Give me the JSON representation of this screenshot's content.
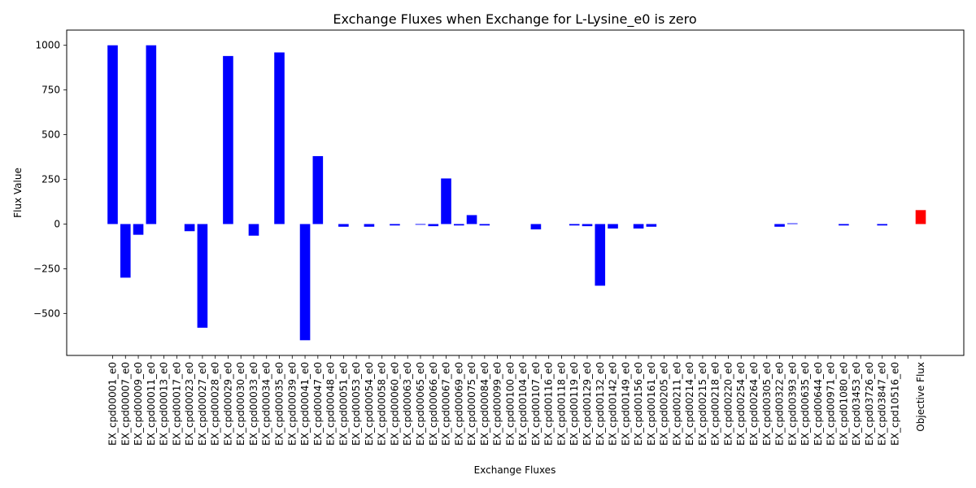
{
  "chart_data": {
    "type": "bar",
    "title": "Exchange Fluxes when Exchange for L-Lysine_e0 is zero",
    "xlabel": "Exchange Fluxes",
    "ylabel": "Flux Value",
    "ylim": [
      -735,
      1085
    ],
    "yticks": [
      -500,
      -250,
      0,
      250,
      500,
      750,
      1000
    ],
    "grid": false,
    "legend": "none",
    "categories": [
      "EX_cpd00001_e0",
      "EX_cpd00007_e0",
      "EX_cpd00009_e0",
      "EX_cpd00011_e0",
      "EX_cpd00013_e0",
      "EX_cpd00017_e0",
      "EX_cpd00023_e0",
      "EX_cpd00027_e0",
      "EX_cpd00028_e0",
      "EX_cpd00029_e0",
      "EX_cpd00030_e0",
      "EX_cpd00033_e0",
      "EX_cpd00034_e0",
      "EX_cpd00035_e0",
      "EX_cpd00039_e0",
      "EX_cpd00041_e0",
      "EX_cpd00047_e0",
      "EX_cpd00048_e0",
      "EX_cpd00051_e0",
      "EX_cpd00053_e0",
      "EX_cpd00054_e0",
      "EX_cpd00058_e0",
      "EX_cpd00060_e0",
      "EX_cpd00063_e0",
      "EX_cpd00065_e0",
      "EX_cpd00066_e0",
      "EX_cpd00067_e0",
      "EX_cpd00069_e0",
      "EX_cpd00075_e0",
      "EX_cpd00084_e0",
      "EX_cpd00099_e0",
      "EX_cpd00100_e0",
      "EX_cpd00104_e0",
      "EX_cpd00107_e0",
      "EX_cpd00116_e0",
      "EX_cpd00118_e0",
      "EX_cpd00119_e0",
      "EX_cpd00129_e0",
      "EX_cpd00132_e0",
      "EX_cpd00142_e0",
      "EX_cpd00149_e0",
      "EX_cpd00156_e0",
      "EX_cpd00161_e0",
      "EX_cpd00205_e0",
      "EX_cpd00211_e0",
      "EX_cpd00214_e0",
      "EX_cpd00215_e0",
      "EX_cpd00218_e0",
      "EX_cpd00220_e0",
      "EX_cpd00254_e0",
      "EX_cpd00264_e0",
      "EX_cpd00305_e0",
      "EX_cpd00322_e0",
      "EX_cpd00393_e0",
      "EX_cpd00635_e0",
      "EX_cpd00644_e0",
      "EX_cpd00971_e0",
      "EX_cpd01080_e0",
      "EX_cpd03453_e0",
      "EX_cpd03726_e0",
      "EX_cpd03847_e0",
      "EX_cpd10516_e0",
      "",
      "Objective Flux"
    ],
    "values": [
      1000,
      -300,
      -60,
      1000,
      0,
      0,
      -40,
      -580,
      0,
      940,
      0,
      -65,
      0,
      960,
      0,
      -650,
      380,
      0,
      -15,
      0,
      -15,
      0,
      -8,
      0,
      -4,
      -12,
      255,
      -8,
      50,
      -8,
      0,
      0,
      0,
      -30,
      0,
      0,
      -8,
      -12,
      -345,
      -25,
      0,
      -25,
      -15,
      0,
      0,
      0,
      0,
      0,
      0,
      0,
      0,
      0,
      -15,
      4,
      0,
      0,
      0,
      -8,
      0,
      0,
      -8,
      0,
      0,
      78
    ],
    "colors": {
      "exchange": "#0000ff",
      "objective": "#ff0000"
    }
  }
}
